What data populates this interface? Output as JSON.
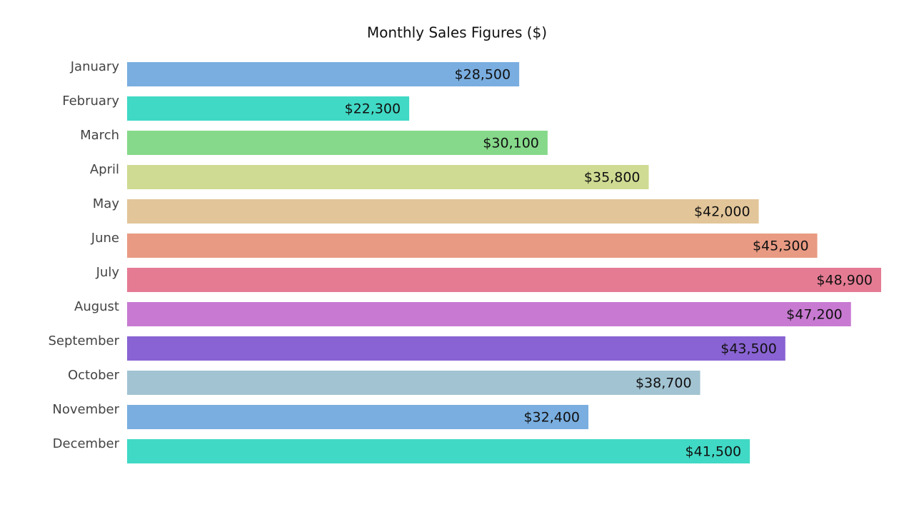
{
  "chart_data": {
    "type": "bar",
    "orientation": "horizontal",
    "title": "Monthly Sales Figures ($)",
    "categories": [
      "January",
      "February",
      "March",
      "April",
      "May",
      "June",
      "July",
      "August",
      "September",
      "October",
      "November",
      "December"
    ],
    "values": [
      28500,
      22300,
      30100,
      35800,
      42000,
      45300,
      48900,
      47200,
      43500,
      38700,
      32400,
      41500
    ],
    "value_labels": [
      "$28,500",
      "$22,300",
      "$30,100",
      "$35,800",
      "$42,000",
      "$45,300",
      "$48,900",
      "$47,200",
      "$43,500",
      "$38,700",
      "$32,400",
      "$41,500"
    ],
    "colors": [
      "#7aaee0",
      "#40d9c5",
      "#86d98a",
      "#cfdb92",
      "#e2c599",
      "#e99a83",
      "#e57b93",
      "#c87ad2",
      "#8963d3",
      "#a2c3d2",
      "#7aaee0",
      "#40d9c5"
    ],
    "xlim": [
      6400,
      48900
    ]
  }
}
